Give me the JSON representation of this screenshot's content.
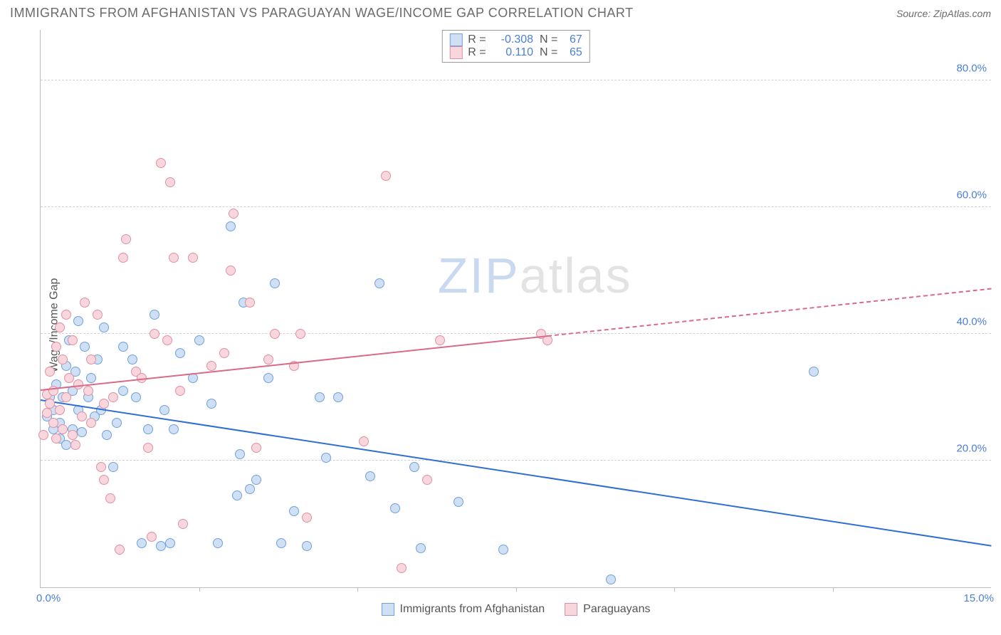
{
  "header": {
    "title": "IMMIGRANTS FROM AFGHANISTAN VS PARAGUAYAN WAGE/INCOME GAP CORRELATION CHART",
    "source_prefix": "Source: ",
    "source_name": "ZipAtlas.com"
  },
  "watermark": {
    "zip": "ZIP",
    "rest": "atlas"
  },
  "chart": {
    "type": "scatter",
    "ylabel": "Wage/Income Gap",
    "xlim": [
      0,
      15
    ],
    "ylim": [
      0,
      88
    ],
    "x_tick_labels": {
      "min": "0.0%",
      "max": "15.0%"
    },
    "x_minor_ticks": [
      2.5,
      5.0,
      7.5,
      10.0,
      12.5
    ],
    "y_gridlines": [
      20,
      40,
      60,
      80
    ],
    "y_tick_labels": [
      "20.0%",
      "40.0%",
      "60.0%",
      "80.0%"
    ],
    "background_color": "#ffffff",
    "grid_color": "#d0d0d0",
    "axis_color": "#bbbbbb",
    "tick_label_color": "#4a7fd6",
    "ylabel_color": "#555555",
    "marker_radius": 7,
    "marker_stroke_width": 1.5,
    "series": [
      {
        "key": "afghan",
        "label": "Immigrants from Afghanistan",
        "fill": "#cfe0f4",
        "stroke": "#6fa0de",
        "R": "-0.308",
        "N": "67",
        "trend": {
          "x1": 0,
          "y1": 29.5,
          "x2": 15,
          "y2": 6.5,
          "color": "#2f6fd1",
          "width": 2,
          "solid_until_x": 15
        },
        "points": [
          [
            0.1,
            27
          ],
          [
            0.15,
            30
          ],
          [
            0.2,
            25
          ],
          [
            0.2,
            28
          ],
          [
            0.25,
            32
          ],
          [
            0.3,
            26
          ],
          [
            0.3,
            23.5
          ],
          [
            0.35,
            30
          ],
          [
            0.4,
            35
          ],
          [
            0.4,
            22.5
          ],
          [
            0.45,
            39
          ],
          [
            0.5,
            31
          ],
          [
            0.5,
            25
          ],
          [
            0.55,
            34
          ],
          [
            0.6,
            28
          ],
          [
            0.6,
            42
          ],
          [
            0.65,
            24.5
          ],
          [
            0.7,
            38
          ],
          [
            0.75,
            30
          ],
          [
            0.8,
            33
          ],
          [
            0.85,
            27
          ],
          [
            0.9,
            36
          ],
          [
            0.95,
            28
          ],
          [
            1.0,
            41
          ],
          [
            1.05,
            24
          ],
          [
            1.15,
            19
          ],
          [
            1.2,
            26
          ],
          [
            1.3,
            31
          ],
          [
            1.3,
            38
          ],
          [
            1.45,
            36
          ],
          [
            1.5,
            30
          ],
          [
            1.6,
            7
          ],
          [
            1.7,
            25
          ],
          [
            1.8,
            43
          ],
          [
            1.9,
            6.5
          ],
          [
            1.95,
            28
          ],
          [
            2.05,
            7
          ],
          [
            2.1,
            25
          ],
          [
            2.2,
            37
          ],
          [
            2.4,
            33
          ],
          [
            2.5,
            39
          ],
          [
            2.7,
            29
          ],
          [
            2.8,
            7
          ],
          [
            3.0,
            57
          ],
          [
            3.1,
            14.5
          ],
          [
            3.15,
            21
          ],
          [
            3.2,
            45
          ],
          [
            3.3,
            15.5
          ],
          [
            3.4,
            17
          ],
          [
            3.6,
            33
          ],
          [
            3.7,
            48
          ],
          [
            3.8,
            7
          ],
          [
            4.0,
            12
          ],
          [
            4.2,
            6.5
          ],
          [
            4.4,
            30
          ],
          [
            4.5,
            20.5
          ],
          [
            4.7,
            30
          ],
          [
            5.2,
            17.5
          ],
          [
            5.35,
            48
          ],
          [
            5.6,
            12.5
          ],
          [
            5.9,
            19
          ],
          [
            6.0,
            6.2
          ],
          [
            6.6,
            13.5
          ],
          [
            7.3,
            6
          ],
          [
            9.0,
            1.2
          ],
          [
            12.2,
            34
          ]
        ]
      },
      {
        "key": "paraguay",
        "label": "Paraguayans",
        "fill": "#f8d6de",
        "stroke": "#e190a3",
        "R": "0.110",
        "N": "65",
        "trend": {
          "x1": 0,
          "y1": 31,
          "x2": 15,
          "y2": 47,
          "color": "#d96a88",
          "width": 2,
          "solid_until_x": 8.0
        },
        "points": [
          [
            0.05,
            24
          ],
          [
            0.1,
            27.5
          ],
          [
            0.1,
            30.5
          ],
          [
            0.15,
            29
          ],
          [
            0.15,
            34
          ],
          [
            0.2,
            26
          ],
          [
            0.2,
            31
          ],
          [
            0.25,
            38
          ],
          [
            0.25,
            23.5
          ],
          [
            0.3,
            28
          ],
          [
            0.3,
            41
          ],
          [
            0.35,
            36
          ],
          [
            0.35,
            25
          ],
          [
            0.4,
            43
          ],
          [
            0.4,
            30
          ],
          [
            0.45,
            33
          ],
          [
            0.5,
            24
          ],
          [
            0.5,
            39
          ],
          [
            0.55,
            22.5
          ],
          [
            0.6,
            32
          ],
          [
            0.65,
            27
          ],
          [
            0.7,
            45
          ],
          [
            0.75,
            31
          ],
          [
            0.8,
            36
          ],
          [
            0.8,
            26
          ],
          [
            0.9,
            43
          ],
          [
            0.95,
            19
          ],
          [
            1.0,
            29
          ],
          [
            1.0,
            17
          ],
          [
            1.1,
            14
          ],
          [
            1.15,
            30
          ],
          [
            1.25,
            6
          ],
          [
            1.3,
            52
          ],
          [
            1.35,
            55
          ],
          [
            1.5,
            34
          ],
          [
            1.6,
            33
          ],
          [
            1.7,
            22
          ],
          [
            1.75,
            8
          ],
          [
            1.8,
            40
          ],
          [
            1.9,
            67
          ],
          [
            2.0,
            39
          ],
          [
            2.05,
            64
          ],
          [
            2.1,
            52
          ],
          [
            2.2,
            31
          ],
          [
            2.25,
            10
          ],
          [
            2.4,
            52
          ],
          [
            2.7,
            35
          ],
          [
            2.9,
            37
          ],
          [
            3.0,
            50
          ],
          [
            3.05,
            59
          ],
          [
            3.3,
            45
          ],
          [
            3.4,
            22
          ],
          [
            3.6,
            36
          ],
          [
            3.7,
            40
          ],
          [
            4.0,
            35
          ],
          [
            4.1,
            40
          ],
          [
            4.2,
            11
          ],
          [
            5.1,
            23
          ],
          [
            5.45,
            65
          ],
          [
            5.7,
            3
          ],
          [
            6.1,
            17
          ],
          [
            6.3,
            39
          ],
          [
            7.9,
            40
          ],
          [
            8.0,
            39
          ]
        ]
      }
    ]
  }
}
